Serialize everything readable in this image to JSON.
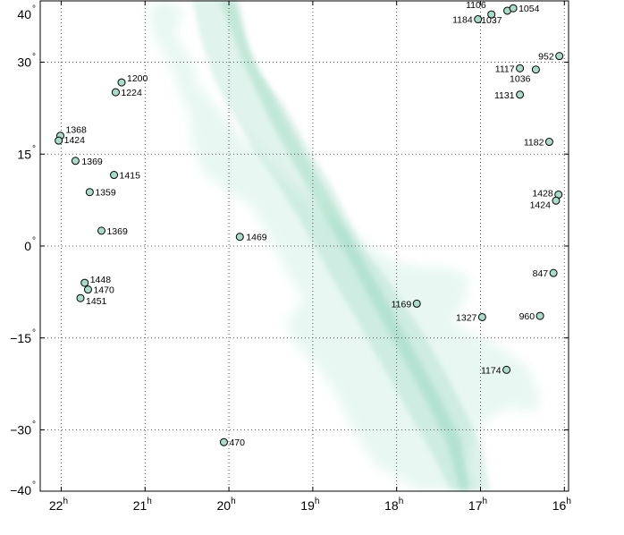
{
  "chart_data": {
    "type": "scatter",
    "title": "",
    "xlabel": "",
    "ylabel": "",
    "xlim": [
      22.25,
      15.95
    ],
    "ylim": [
      -40,
      40
    ],
    "x_ticks": [
      22,
      21,
      20,
      19,
      18,
      17,
      16
    ],
    "x_tick_labels": [
      {
        "value": "22",
        "unit": "h"
      },
      {
        "value": "21",
        "unit": "h"
      },
      {
        "value": "20",
        "unit": "h"
      },
      {
        "value": "19",
        "unit": "h"
      },
      {
        "value": "18",
        "unit": "h"
      },
      {
        "value": "17",
        "unit": "h"
      },
      {
        "value": "16",
        "unit": "h"
      }
    ],
    "y_ticks": [
      40,
      30,
      15,
      0,
      -15,
      -30,
      -40
    ],
    "y_tick_labels": [
      {
        "value": "40",
        "unit": "°"
      },
      {
        "value": "30",
        "unit": "°"
      },
      {
        "value": "15",
        "unit": "°"
      },
      {
        "value": "0",
        "unit": "°"
      },
      {
        "value": "−15",
        "unit": "°"
      },
      {
        "value": "−30",
        "unit": "°"
      },
      {
        "value": "−40",
        "unit": "°"
      }
    ],
    "grid": true,
    "marker_color": "#a8dcc8",
    "band_color": "#7fd0b6",
    "background": "Milky Way band from upper-left (20h,+40°) to lower-right (18h,−40°)",
    "points": [
      {
        "x": 22.01,
        "y": 18.0,
        "label": "1368"
      },
      {
        "x": 22.03,
        "y": 17.2,
        "label": "1424"
      },
      {
        "x": 21.83,
        "y": 13.9,
        "label": "1369"
      },
      {
        "x": 21.28,
        "y": 26.7,
        "label": "1200"
      },
      {
        "x": 21.35,
        "y": 25.1,
        "label": "1224"
      },
      {
        "x": 21.37,
        "y": 11.6,
        "label": "1415"
      },
      {
        "x": 21.66,
        "y": 8.8,
        "label": "1359"
      },
      {
        "x": 21.52,
        "y": 2.5,
        "label": "1369"
      },
      {
        "x": 21.72,
        "y": -6.0,
        "label": "1448"
      },
      {
        "x": 21.68,
        "y": -7.1,
        "label": "1470"
      },
      {
        "x": 21.77,
        "y": -8.5,
        "label": "1451"
      },
      {
        "x": 20.06,
        "y": -32.0,
        "label": "470"
      },
      {
        "x": 19.87,
        "y": 1.5,
        "label": "1469"
      },
      {
        "x": 17.03,
        "y": 37.0,
        "label": "1184"
      },
      {
        "x": 16.87,
        "y": 37.8,
        "label": "1106"
      },
      {
        "x": 16.68,
        "y": 38.4,
        "label": "1037"
      },
      {
        "x": 16.61,
        "y": 38.8,
        "label": "1054"
      },
      {
        "x": 16.06,
        "y": 31.0,
        "label": "952"
      },
      {
        "x": 16.53,
        "y": 29.0,
        "label": "1117"
      },
      {
        "x": 16.34,
        "y": 28.8,
        "label": "1036"
      },
      {
        "x": 16.53,
        "y": 24.7,
        "label": "1131"
      },
      {
        "x": 16.18,
        "y": 17.0,
        "label": "1182"
      },
      {
        "x": 16.07,
        "y": 8.4,
        "label": "1428"
      },
      {
        "x": 16.1,
        "y": 7.4,
        "label": "1424"
      },
      {
        "x": 16.13,
        "y": -4.4,
        "label": "847"
      },
      {
        "x": 17.76,
        "y": -9.4,
        "label": "1169"
      },
      {
        "x": 16.98,
        "y": -11.6,
        "label": "1327"
      },
      {
        "x": 16.29,
        "y": -11.4,
        "label": "960"
      },
      {
        "x": 16.69,
        "y": -20.2,
        "label": "1174"
      }
    ]
  }
}
